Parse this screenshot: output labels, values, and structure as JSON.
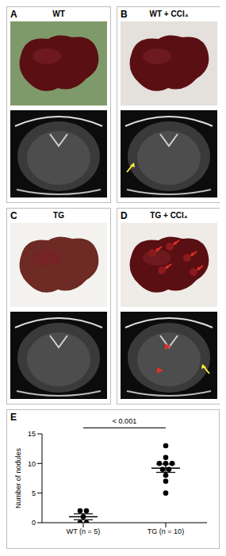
{
  "panels": [
    {
      "letter": "A",
      "label": "WT"
    },
    {
      "letter": "B",
      "label": "WT + CCl₄"
    },
    {
      "letter": "C",
      "label": "TG"
    },
    {
      "letter": "D",
      "label": "TG + CCl₄"
    }
  ],
  "chart_data": {
    "type": "scatter",
    "letter": "E",
    "y_label": "Number of nodules",
    "categories": [
      "WT (n = 5)",
      "TG (n = 10)"
    ],
    "groups": [
      {
        "values": [
          2,
          2,
          1,
          0,
          0
        ],
        "mean": 1,
        "error": 0.5
      },
      {
        "values": [
          13,
          11,
          10,
          10,
          10,
          9,
          9,
          8,
          7,
          5
        ],
        "mean": 9.2,
        "error": 0.7
      }
    ],
    "annotation": "< 0.001",
    "ylim": [
      0,
      15
    ],
    "yticks": [
      0,
      5,
      10,
      15
    ],
    "color": "#000000",
    "marker": "circle"
  }
}
